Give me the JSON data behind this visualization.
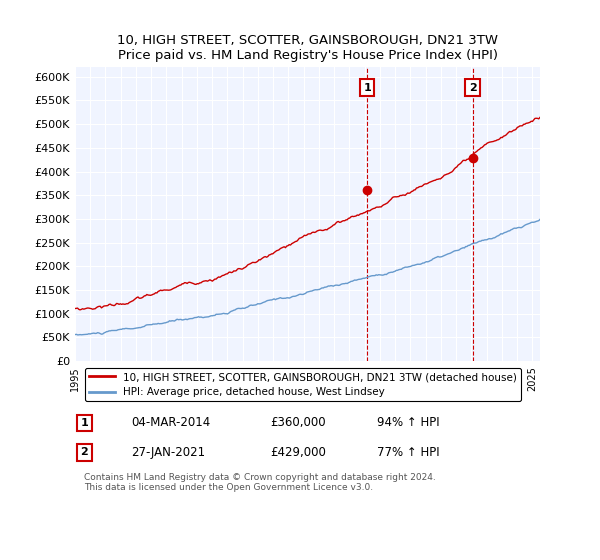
{
  "title": "10, HIGH STREET, SCOTTER, GAINSBOROUGH, DN21 3TW",
  "subtitle": "Price paid vs. HM Land Registry's House Price Index (HPI)",
  "ylabel_ticks": [
    "£0",
    "£50K",
    "£100K",
    "£150K",
    "£200K",
    "£250K",
    "£300K",
    "£350K",
    "£400K",
    "£450K",
    "£500K",
    "£550K",
    "£600K"
  ],
  "ylim": [
    0,
    620000
  ],
  "xlim_start": 1995.0,
  "xlim_end": 2025.5,
  "marker1_x": 2014.17,
  "marker1_y": 360000,
  "marker1_label": "1",
  "marker2_x": 2021.08,
  "marker2_y": 429000,
  "marker2_label": "2",
  "vline1_x": 2014.17,
  "vline2_x": 2021.08,
  "legend_line1_color": "#cc0000",
  "legend_line1_label": "10, HIGH STREET, SCOTTER, GAINSBOROUGH, DN21 3TW (detached house)",
  "legend_line2_color": "#6699cc",
  "legend_line2_label": "HPI: Average price, detached house, West Lindsey",
  "annotation1_num": "1",
  "annotation1_date": "04-MAR-2014",
  "annotation1_price": "£360,000",
  "annotation1_hpi": "94% ↑ HPI",
  "annotation2_num": "2",
  "annotation2_date": "27-JAN-2021",
  "annotation2_price": "£429,000",
  "annotation2_hpi": "77% ↑ HPI",
  "footer": "Contains HM Land Registry data © Crown copyright and database right 2024.\nThis data is licensed under the Open Government Licence v3.0.",
  "background_color": "#ffffff",
  "plot_bg_color": "#f0f4ff",
  "grid_color": "#ffffff",
  "vline_color": "#cc0000",
  "marker_box_color": "#cc0000"
}
